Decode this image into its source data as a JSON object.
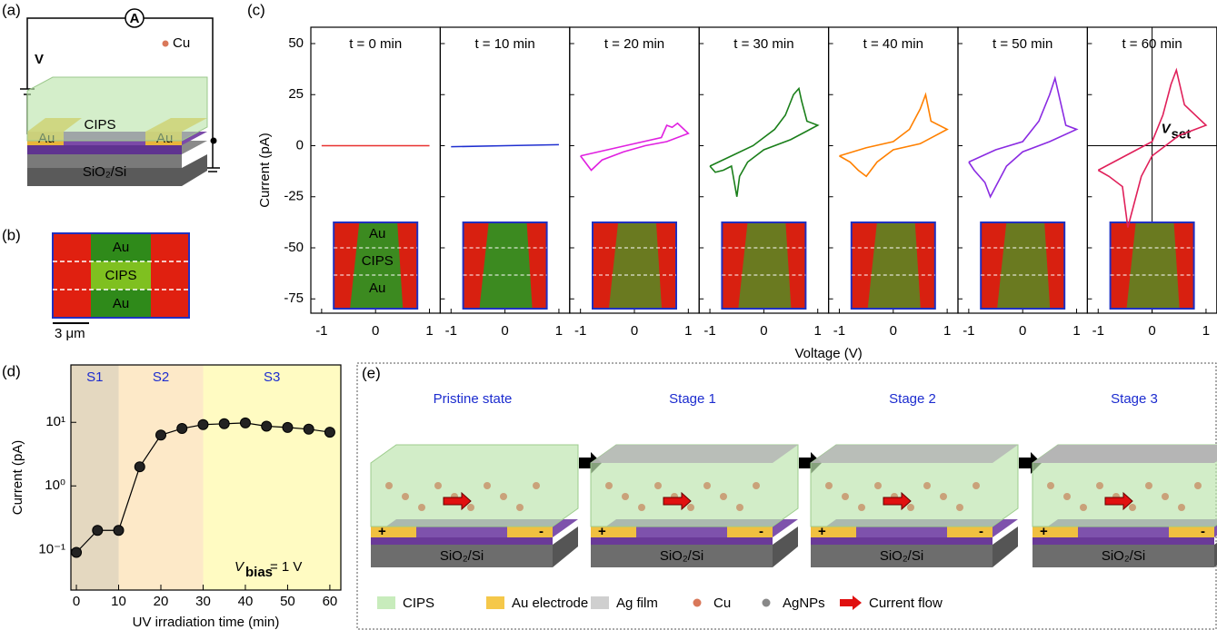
{
  "panel_labels": [
    "(a)",
    "(b)",
    "(c)",
    "(d)",
    "(e)"
  ],
  "panel_a": {
    "meter": "A",
    "voltage": "V",
    "particle": "Cu",
    "layer": "CIPS",
    "electrode": "Au",
    "substrate": "SiO₂/Si"
  },
  "panel_b": {
    "top": "Au",
    "middle": "CIPS",
    "bottom": "Au",
    "scale": "3 μm"
  },
  "chart_data": [
    {
      "type": "line",
      "title": "t = 0 min",
      "ylabel": "Current (pA)",
      "inset_labels": [
        "Au",
        "CIPS",
        "Au"
      ],
      "xlim": [
        -1.2,
        1.2
      ],
      "xticks": [
        -1,
        0,
        1
      ],
      "ylim": [
        -82,
        58
      ],
      "yticks": [
        -75,
        -50,
        -25,
        0,
        25,
        50
      ],
      "series": [
        {
          "color": "#e8312f",
          "x": [
            -1,
            -0.5,
            0,
            0.5,
            1
          ],
          "values": [
            0,
            0,
            0,
            0,
            0
          ]
        }
      ]
    },
    {
      "type": "line",
      "title": "t = 10 min",
      "xlim": [
        -1.2,
        1.2
      ],
      "xticks": [
        -1,
        0,
        1
      ],
      "ylim": [
        -82,
        58
      ],
      "yticks": [
        -75,
        -50,
        -25,
        0,
        25,
        50
      ],
      "series": [
        {
          "color": "#1f2fd0",
          "x": [
            -1,
            0,
            1
          ],
          "values": [
            -0.5,
            0,
            0.5
          ]
        }
      ]
    },
    {
      "type": "line",
      "title": "t = 20 min",
      "xlim": [
        -1.2,
        1.2
      ],
      "xticks": [
        -1,
        0,
        1
      ],
      "ylim": [
        -82,
        58
      ],
      "yticks": [
        -75,
        -50,
        -25,
        0,
        25,
        50
      ],
      "series": [
        {
          "color": "#e020e0",
          "x": [
            -1,
            -0.5,
            0,
            0.5,
            0.6,
            0.7,
            0.8,
            1,
            0.6,
            0.2,
            -0.2,
            -0.6,
            -0.8,
            -1
          ],
          "values": [
            -5,
            -2,
            1,
            4,
            10,
            9,
            11,
            6,
            2,
            0,
            -3,
            -7,
            -12,
            -5
          ]
        }
      ]
    },
    {
      "type": "line",
      "title": "t = 30 min",
      "xlabel": "Voltage (V)",
      "xlim": [
        -1.2,
        1.2
      ],
      "xticks": [
        -1,
        0,
        1
      ],
      "ylim": [
        -82,
        58
      ],
      "yticks": [
        -75,
        -50,
        -25,
        0,
        25,
        50
      ],
      "series": [
        {
          "color": "#1a7f1a",
          "x": [
            -1,
            -0.6,
            -0.2,
            0.2,
            0.4,
            0.55,
            0.65,
            0.7,
            0.8,
            1,
            0.5,
            0,
            -0.3,
            -0.45,
            -0.5,
            -0.6,
            -0.75,
            -0.9,
            -1
          ],
          "values": [
            -10,
            -5,
            0,
            8,
            15,
            25,
            28,
            22,
            12,
            10,
            3,
            -2,
            -8,
            -15,
            -25,
            -10,
            -12,
            -13,
            -10
          ]
        }
      ]
    },
    {
      "type": "line",
      "title": "t = 40 min",
      "xlim": [
        -1.2,
        1.2
      ],
      "xticks": [
        -1,
        0,
        1
      ],
      "ylim": [
        -82,
        58
      ],
      "yticks": [
        -75,
        -50,
        -25,
        0,
        25,
        50
      ],
      "series": [
        {
          "color": "#ff8000",
          "x": [
            -1,
            -0.5,
            0,
            0.3,
            0.5,
            0.6,
            0.7,
            1,
            0.5,
            0,
            -0.3,
            -0.5,
            -0.65,
            -0.8,
            -1
          ],
          "values": [
            -5,
            -1,
            2,
            8,
            18,
            25,
            12,
            8,
            1,
            -2,
            -8,
            -15,
            -12,
            -8,
            -5
          ]
        }
      ]
    },
    {
      "type": "line",
      "title": "t = 50 min",
      "xlim": [
        -1.2,
        1.2
      ],
      "xticks": [
        -1,
        0,
        1
      ],
      "ylim": [
        -82,
        58
      ],
      "yticks": [
        -75,
        -50,
        -25,
        0,
        25,
        50
      ],
      "series": [
        {
          "color": "#8a2be2",
          "x": [
            -1,
            -0.5,
            0,
            0.3,
            0.5,
            0.6,
            0.8,
            1,
            0.5,
            0,
            -0.3,
            -0.5,
            -0.6,
            -0.7,
            -0.9,
            -1
          ],
          "values": [
            -8,
            -2,
            2,
            12,
            25,
            33,
            10,
            8,
            2,
            -3,
            -10,
            -20,
            -25,
            -18,
            -12,
            -8
          ]
        }
      ]
    },
    {
      "type": "line",
      "title": "t = 60 min",
      "vset": {
        "symbol": "V",
        "subscript": "set"
      },
      "xlim": [
        -1.2,
        1.2
      ],
      "xticks": [
        -1,
        0,
        1
      ],
      "ylim": [
        -82,
        58
      ],
      "yticks": [
        -75,
        -50,
        -25,
        0,
        25,
        50
      ],
      "series": [
        {
          "color": "#e0205a",
          "x": [
            -1,
            -0.5,
            0,
            0.2,
            0.35,
            0.45,
            0.6,
            1,
            0.5,
            0,
            -0.2,
            -0.35,
            -0.45,
            -0.55,
            -0.8,
            -1
          ],
          "values": [
            -12,
            -5,
            2,
            15,
            30,
            37,
            20,
            10,
            5,
            -5,
            -15,
            -30,
            -40,
            -20,
            -15,
            -12
          ]
        }
      ]
    },
    {
      "type": "line",
      "log_y": true,
      "xlabel": "UV irradiation time (min)",
      "ylabel": "Current (pA)",
      "color": "#000000",
      "x": [
        0,
        5,
        10,
        15,
        20,
        25,
        30,
        35,
        40,
        45,
        50,
        55,
        60
      ],
      "values": [
        0.09,
        0.2,
        0.2,
        2,
        6.3,
        8,
        9.2,
        9.5,
        9.8,
        8.7,
        8.3,
        7.8,
        7
      ],
      "xlim": [
        -1.3,
        62.6
      ],
      "xticks": [
        0,
        10,
        20,
        30,
        40,
        50,
        60
      ],
      "ylim": [
        0.023,
        80
      ],
      "yticks": [
        {
          "value": 0.1,
          "label": "10⁻¹"
        },
        {
          "value": 1,
          "label": "10⁰"
        },
        {
          "value": 10,
          "label": "10¹"
        }
      ],
      "regions": [
        {
          "label": "S1",
          "start": -1.3,
          "end": 10,
          "color": "#e4d8c0"
        },
        {
          "label": "S2",
          "start": 10,
          "end": 30,
          "color": "#fde9c8"
        },
        {
          "label": "S3",
          "start": 30,
          "end": 62.6,
          "color": "#fffbc2"
        }
      ],
      "annotation": {
        "symbol": "V",
        "subscript": "bias",
        "text": " = 1 V"
      }
    }
  ],
  "panel_e": {
    "stages": [
      "Pristine state",
      "Stage 1",
      "Stage 2",
      "Stage 3"
    ],
    "plus": "+",
    "minus": "-",
    "substrate": "SiO₂/Si",
    "legend": [
      "CIPS",
      "Au electrode",
      "Ag film",
      "Cu",
      "AgNPs",
      "Current flow"
    ]
  }
}
